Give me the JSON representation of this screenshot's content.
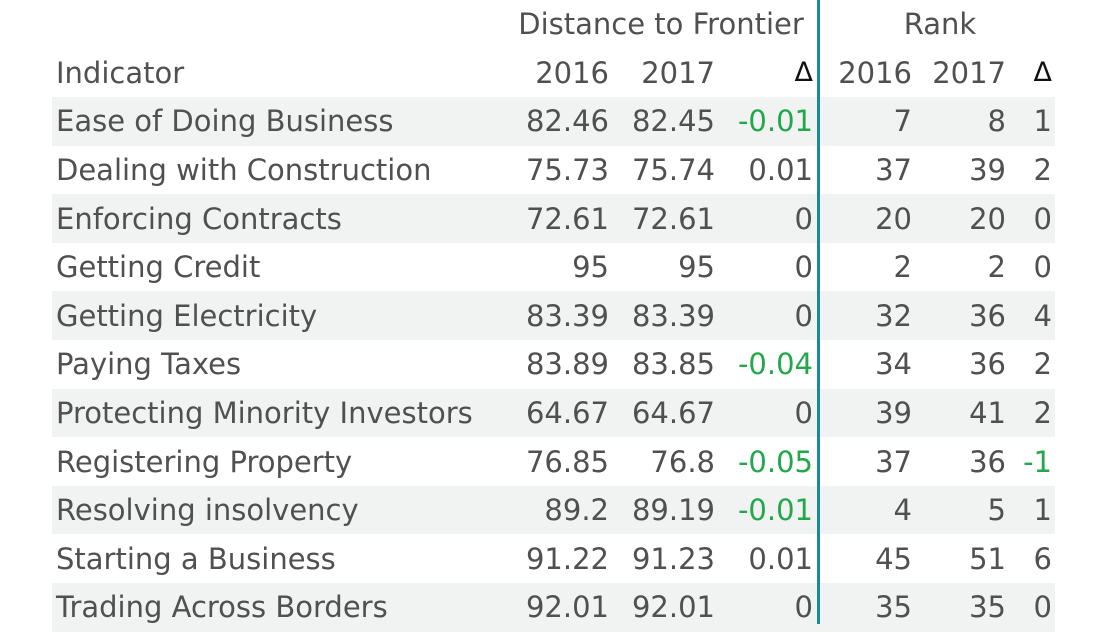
{
  "chart_data": {
    "type": "table",
    "group_headers": {
      "dtf": "Distance to Frontier",
      "rank": "Rank"
    },
    "column_headers": [
      "Indicator",
      "2016",
      "2017",
      "Δ",
      "2016",
      "2017",
      "Δ"
    ],
    "rows": [
      [
        "Ease of Doing Business",
        "82.46",
        "82.45",
        "-0.01",
        "7",
        "8",
        "1"
      ],
      [
        "Dealing with Construction",
        "75.73",
        "75.74",
        "0.01",
        "37",
        "39",
        "2"
      ],
      [
        "Enforcing Contracts",
        "72.61",
        "72.61",
        "0",
        "20",
        "20",
        "0"
      ],
      [
        "Getting Credit",
        "95",
        "95",
        "0",
        "2",
        "2",
        "0"
      ],
      [
        "Getting Electricity",
        "83.39",
        "83.39",
        "0",
        "32",
        "36",
        "4"
      ],
      [
        "Paying Taxes",
        "83.89",
        "83.85",
        "-0.04",
        "34",
        "36",
        "2"
      ],
      [
        "Protecting Minority Investors",
        "64.67",
        "64.67",
        "0",
        "39",
        "41",
        "2"
      ],
      [
        "Registering Property",
        "76.85",
        "76.8",
        "-0.05",
        "37",
        "36",
        "-1"
      ],
      [
        "Resolving insolvency",
        "89.2",
        "89.19",
        "-0.01",
        "4",
        "5",
        "1"
      ],
      [
        "Starting a Business",
        "91.22",
        "91.23",
        "0.01",
        "45",
        "51",
        "6"
      ],
      [
        "Trading Across Borders",
        "92.01",
        "92.01",
        "0",
        "35",
        "35",
        "0"
      ]
    ]
  },
  "colors": {
    "text": "#505050",
    "negative": "#22a84a",
    "divider": "#1a8a94",
    "band": "#f1f2f2",
    "delta_symbol": "#111111"
  }
}
